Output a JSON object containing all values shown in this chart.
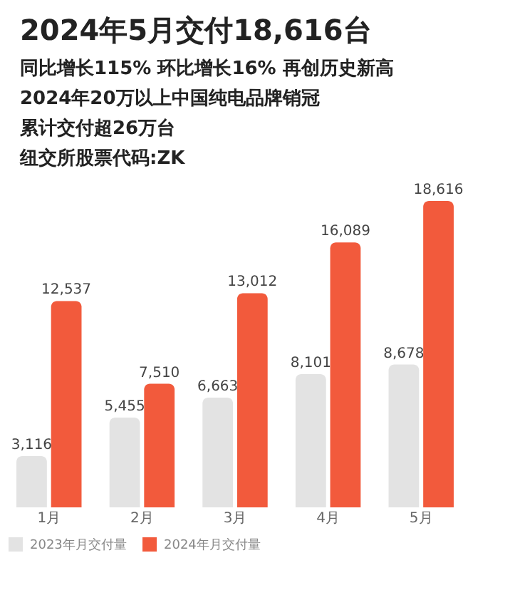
{
  "chart_data": {
    "type": "bar",
    "title": "2024年5月交付18,616台",
    "subtitle": "同比增长115% 环比增长16% 再创历史新高",
    "annotations": [
      "2024年20万以上中国纯电品牌销冠",
      "累计交付超26万台",
      "纽交所股票代码:ZK"
    ],
    "categories": [
      "1月",
      "2月",
      "3月",
      "4月",
      "5月"
    ],
    "series": [
      {
        "name": "2023年月交付量",
        "color": "#e3e3e3",
        "values": [
          3116,
          5455,
          6663,
          8101,
          8678
        ],
        "value_labels": [
          "3,116",
          "5,455",
          "6,663",
          "8,101",
          "8,678"
        ]
      },
      {
        "name": "2024年月交付量",
        "color": "#f25a3c",
        "values": [
          12537,
          7510,
          13012,
          16089,
          18616
        ],
        "value_labels": [
          "12,537",
          "7,510",
          "13,012",
          "16,089",
          "18,616"
        ]
      }
    ],
    "legend": "bottom left",
    "grid": false
  }
}
